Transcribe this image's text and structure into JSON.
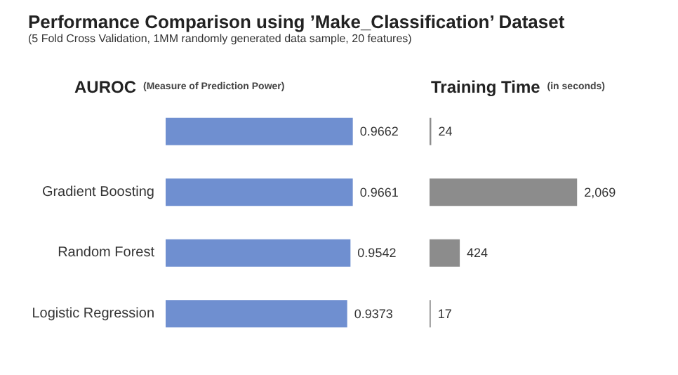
{
  "chart_data": [
    {
      "type": "bar",
      "orientation": "horizontal",
      "title": "AUROC",
      "subtitle": "(Measure of Prediction Power)",
      "annotations": [
        "Performance Comparison using ’Make_Classification’ Dataset",
        "(5 Fold Cross Validation, 1MM randomly generated data sample, 20 features)"
      ],
      "categories": [
        null,
        "Gradient Boosting",
        "Random Forest",
        "Logistic Regression"
      ],
      "values": [
        0.9662,
        0.9661,
        0.9542,
        0.9373
      ],
      "value_labels": [
        "0.9662",
        "0.9661",
        "0.9542",
        "0.9373"
      ],
      "color": "#6f8fd0",
      "tick_labels": "y"
    },
    {
      "type": "bar",
      "orientation": "horizontal",
      "title": "Training Time",
      "subtitle": "(in seconds)",
      "categories": [
        null,
        null,
        null,
        null
      ],
      "values": [
        24,
        2069,
        424,
        17
      ],
      "value_labels": [
        "24",
        "2,069",
        "424",
        "17"
      ],
      "color": "#8c8c8c",
      "tick_labels": false
    }
  ]
}
